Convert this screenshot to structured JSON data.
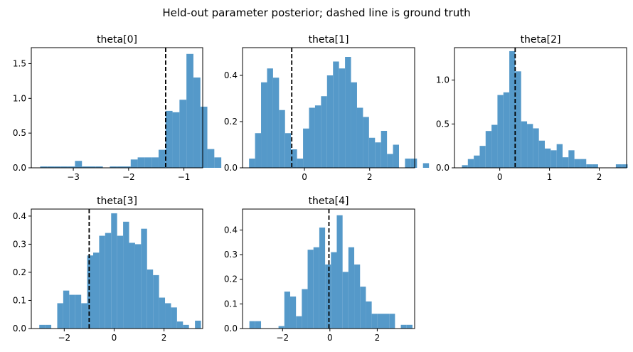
{
  "figure": {
    "suptitle": "Held-out parameter posterior; dashed line is ground truth"
  },
  "colors": {
    "bar": "#5599c9",
    "truth_line": "#000000",
    "axes": "#000000"
  },
  "chart_data": [
    {
      "type": "bar",
      "title": "theta[0]",
      "xlim": [
        -3.76,
        -0.66
      ],
      "ylim": [
        0,
        1.73
      ],
      "xticks": [
        -3,
        -2,
        -1
      ],
      "yticks": [
        0.0,
        0.5,
        1.0,
        1.5
      ],
      "ground_truth": -1.33,
      "bin_start": -3.6,
      "bin_width": 0.126,
      "counts": [
        0.02,
        0.02,
        0.02,
        0.02,
        0.02,
        0.1,
        0.02,
        0.02,
        0.02,
        0.0,
        0.02,
        0.02,
        0.02,
        0.12,
        0.15,
        0.15,
        0.15,
        0.26,
        0.82,
        0.8,
        0.98,
        1.64,
        1.3,
        0.88,
        0.27,
        0.15
      ]
    },
    {
      "type": "bar",
      "title": "theta[1]",
      "xlim": [
        -1.9,
        3.38
      ],
      "ylim": [
        0,
        0.52
      ],
      "xticks": [
        0,
        2
      ],
      "yticks": [
        0.0,
        0.2,
        0.4
      ],
      "ground_truth": -0.39,
      "bin_start": -1.7,
      "bin_width": 0.184,
      "counts": [
        0.04,
        0.15,
        0.37,
        0.43,
        0.39,
        0.25,
        0.15,
        0.08,
        0.04,
        0.17,
        0.26,
        0.27,
        0.31,
        0.4,
        0.46,
        0.43,
        0.48,
        0.37,
        0.26,
        0.22,
        0.13,
        0.11,
        0.16,
        0.06,
        0.1,
        0.0,
        0.04,
        0.04,
        0.0,
        0.02
      ]
    },
    {
      "type": "bar",
      "title": "theta[2]",
      "xlim": [
        -0.91,
        2.55
      ],
      "ylim": [
        0,
        1.37
      ],
      "xticks": [
        0,
        1,
        2
      ],
      "yticks": [
        0.0,
        0.5,
        1.0
      ],
      "ground_truth": 0.31,
      "bin_start": -0.76,
      "bin_width": 0.119,
      "counts": [
        0.03,
        0.1,
        0.14,
        0.25,
        0.42,
        0.49,
        0.83,
        0.86,
        1.33,
        1.1,
        0.53,
        0.5,
        0.45,
        0.31,
        0.22,
        0.2,
        0.27,
        0.12,
        0.2,
        0.1,
        0.1,
        0.04,
        0.04,
        0.0,
        0.0,
        0.0,
        0.04,
        0.04
      ]
    },
    {
      "type": "bar",
      "title": "theta[3]",
      "xlim": [
        -3.32,
        3.55
      ],
      "ylim": [
        0,
        0.425
      ],
      "xticks": [
        -2,
        0,
        2
      ],
      "yticks": [
        0.0,
        0.1,
        0.2,
        0.3,
        0.4
      ],
      "ground_truth": -1.0,
      "bin_start": -3.0,
      "bin_width": 0.24,
      "counts": [
        0.013,
        0.013,
        0.0,
        0.09,
        0.135,
        0.12,
        0.12,
        0.09,
        0.26,
        0.27,
        0.33,
        0.34,
        0.41,
        0.33,
        0.38,
        0.305,
        0.3,
        0.355,
        0.21,
        0.19,
        0.11,
        0.09,
        0.075,
        0.025,
        0.013,
        0.0,
        0.028
      ]
    },
    {
      "type": "bar",
      "title": "theta[4]",
      "xlim": [
        -3.69,
        3.58
      ],
      "ylim": [
        0,
        0.485
      ],
      "xticks": [
        -2,
        0,
        2
      ],
      "yticks": [
        0.0,
        0.1,
        0.2,
        0.3,
        0.4
      ],
      "ground_truth": -0.04,
      "bin_start": -3.4,
      "bin_width": 0.246,
      "counts": [
        0.03,
        0.03,
        0.0,
        0.0,
        0.0,
        0.01,
        0.15,
        0.13,
        0.05,
        0.16,
        0.32,
        0.33,
        0.41,
        0.26,
        0.31,
        0.46,
        0.23,
        0.33,
        0.26,
        0.17,
        0.11,
        0.06,
        0.06,
        0.06,
        0.06,
        0.0,
        0.015,
        0.015
      ]
    }
  ]
}
